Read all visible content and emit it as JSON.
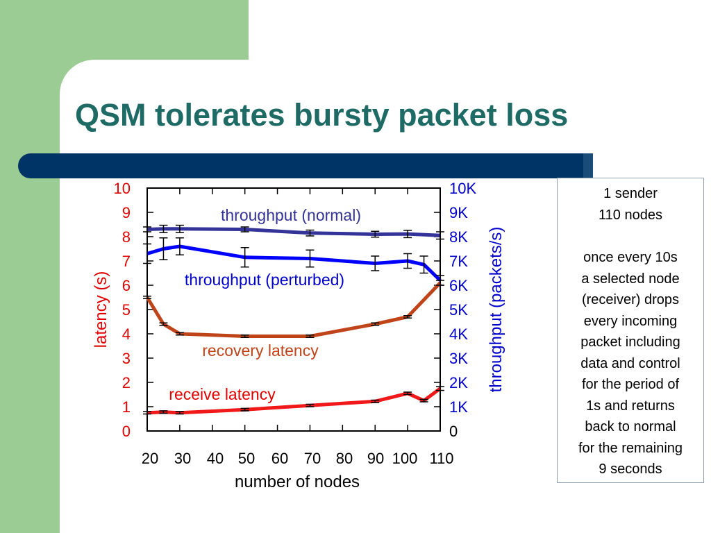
{
  "slide": {
    "title": "QSM tolerates bursty packet loss",
    "colors": {
      "title": "#1E6B66",
      "bar": "#003366",
      "green": "#9ACC93"
    }
  },
  "notes": {
    "line1": "1 sender\n110 nodes",
    "line2": "once every 10s\na selected node\n(receiver) drops\nevery incoming\npacket including\ndata and control\nfor the period of\n1s and returns\nback to normal\nfor the remaining\n9 seconds"
  },
  "chart_data": {
    "type": "line",
    "xlabel": "number of nodes",
    "ylabel_left": "latency (s)",
    "ylabel_right": "throughput (packets/s)",
    "x_ticks": [
      "20",
      "30",
      "40",
      "50",
      "60",
      "70",
      "80",
      "90",
      "100",
      "110"
    ],
    "y_left_ticks": [
      "0",
      "1",
      "2",
      "3",
      "4",
      "5",
      "6",
      "7",
      "8",
      "9",
      "10"
    ],
    "y_right_ticks": [
      "0",
      "1K",
      "2K",
      "3K",
      "4K",
      "5K",
      "6K",
      "7K",
      "8K",
      "9K",
      "10K"
    ],
    "xlim": [
      20,
      110
    ],
    "ylim_left": [
      0,
      10
    ],
    "ylim_right": [
      0,
      10000
    ],
    "series": [
      {
        "name": "throughput (normal)",
        "axis": "right",
        "color": "#333399",
        "x": [
          20,
          25,
          30,
          50,
          70,
          90,
          100,
          110
        ],
        "y": [
          8300,
          8320,
          8320,
          8300,
          8150,
          8100,
          8110,
          8050
        ],
        "err": [
          100,
          150,
          150,
          100,
          120,
          120,
          150,
          150
        ]
      },
      {
        "name": "throughput (perturbed)",
        "axis": "right",
        "color": "#0000FF",
        "x": [
          20,
          25,
          30,
          50,
          70,
          90,
          100,
          105,
          110
        ],
        "y": [
          7300,
          7500,
          7600,
          7150,
          7100,
          6900,
          7000,
          6850,
          6200
        ],
        "err": [
          400,
          450,
          350,
          400,
          350,
          300,
          300,
          350,
          200
        ]
      },
      {
        "name": "recovery latency",
        "axis": "left",
        "color": "#C0441A",
        "x": [
          20,
          25,
          30,
          50,
          70,
          90,
          100,
          110
        ],
        "y": [
          5.5,
          4.4,
          4.0,
          3.9,
          3.9,
          4.4,
          4.7,
          6.1
        ],
        "err": [
          0.05,
          0.05,
          0.05,
          0.05,
          0.05,
          0.05,
          0.05,
          0.1
        ]
      },
      {
        "name": "receive latency",
        "axis": "left",
        "color": "#F01818",
        "x": [
          20,
          25,
          30,
          50,
          70,
          90,
          100,
          105,
          110
        ],
        "y": [
          0.75,
          0.78,
          0.75,
          0.88,
          1.05,
          1.22,
          1.55,
          1.25,
          1.75
        ],
        "err": [
          0.05,
          0.05,
          0.05,
          0.05,
          0.05,
          0.05,
          0.05,
          0.05,
          0.08
        ]
      }
    ],
    "legend": "inline labels near lines",
    "grid": false
  }
}
